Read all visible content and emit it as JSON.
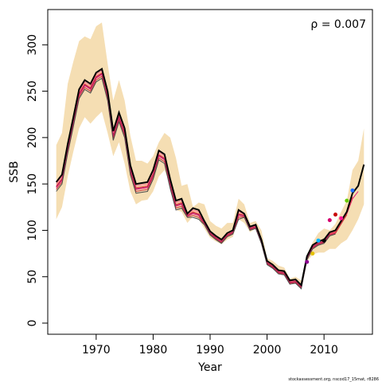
{
  "chart_data": {
    "type": "line",
    "xlabel": "Year",
    "ylabel": "SSB",
    "annotation": "ρ = 0.007",
    "footer": "stockassessment.org, nscod17_15mat, r8286",
    "xlim": [
      1961.5,
      2018.5
    ],
    "ylim": [
      -12,
      338
    ],
    "x_ticks": [
      1970,
      1980,
      1990,
      2000,
      2010
    ],
    "y_ticks": [
      0,
      50,
      100,
      150,
      200,
      250,
      300
    ],
    "colors": {
      "band": "#f5deb3",
      "main": "#000000",
      "retro": [
        "#e21b7a",
        "#f0503c",
        "#c8363c",
        "#ff6e8c",
        "#4a4a4a",
        "#b01e5a"
      ],
      "endpoints": [
        "#8b0090",
        "#e6c200",
        "#00b4ff",
        "#000000",
        "#d4006e",
        "#c80000",
        "#ff1493",
        "#66cc00",
        "#1e6eff"
      ]
    },
    "band": {
      "years": [
        1963,
        1964,
        1965,
        1966,
        1967,
        1968,
        1969,
        1970,
        1971,
        1972,
        1973,
        1974,
        1975,
        1976,
        1977,
        1978,
        1979,
        1980,
        1981,
        1982,
        1983,
        1984,
        1985,
        1986,
        1987,
        1988,
        1989,
        1990,
        1991,
        1992,
        1993,
        1994,
        1995,
        1996,
        1997,
        1998,
        1999,
        2000,
        2001,
        2002,
        2003,
        2004,
        2005,
        2006,
        2007,
        2008,
        2009,
        2010,
        2011,
        2012,
        2013,
        2014,
        2015,
        2016,
        2017
      ],
      "low": [
        112,
        125,
        158,
        185,
        210,
        222,
        215,
        222,
        228,
        205,
        180,
        195,
        172,
        142,
        128,
        132,
        133,
        142,
        158,
        165,
        150,
        122,
        120,
        108,
        115,
        112,
        102,
        92,
        88,
        85,
        90,
        93,
        112,
        108,
        98,
        102,
        85,
        64,
        60,
        55,
        53,
        43,
        43,
        37,
        66,
        74,
        76,
        76,
        80,
        80,
        86,
        90,
        100,
        112,
        128
      ],
      "high": [
        192,
        205,
        258,
        282,
        304,
        309,
        306,
        320,
        324,
        280,
        240,
        262,
        240,
        202,
        175,
        175,
        172,
        180,
        195,
        205,
        200,
        178,
        148,
        150,
        125,
        130,
        128,
        110,
        105,
        102,
        108,
        108,
        134,
        128,
        108,
        110,
        100,
        70,
        67,
        62,
        60,
        48,
        50,
        46,
        74,
        87,
        97,
        102,
        100,
        107,
        120,
        132,
        165,
        175,
        210
      ]
    },
    "series": [
      {
        "name": "",
        "x": [
          1963,
          1964,
          1965,
          1966,
          1967,
          1968,
          1969,
          1970,
          1971,
          1972,
          1973,
          1974,
          1975,
          1976,
          1977,
          1978,
          1979,
          1980,
          1981,
          1982,
          1983,
          1984,
          1985,
          1986,
          1987,
          1988,
          1989,
          1990,
          1991,
          1992,
          1993,
          1994,
          1995,
          1996,
          1997,
          1998,
          1999,
          2000,
          2001,
          2002,
          2003,
          2004,
          2005,
          2006,
          2007,
          2008,
          2009,
          2010,
          2011,
          2012,
          2013,
          2014,
          2015,
          2016,
          2017
        ],
        "values": [
          152,
          160,
          193,
          222,
          252,
          262,
          258,
          270,
          274,
          250,
          207,
          227,
          210,
          170,
          150,
          151,
          152,
          165,
          186,
          182,
          155,
          132,
          134,
          118,
          124,
          122,
          110,
          99,
          94,
          90,
          97,
          100,
          122,
          118,
          104,
          106,
          90,
          67,
          63,
          57,
          56,
          46,
          47,
          41,
          72,
          84,
          88,
          90,
          98,
          100,
          110,
          120,
          140,
          148,
          171
        ]
      }
    ],
    "endpoints": [
      {
        "year": 2007,
        "value": 66
      },
      {
        "year": 2008,
        "value": 75
      },
      {
        "year": 2009,
        "value": 89
      },
      {
        "year": 2010,
        "value": 89
      },
      {
        "year": 2011,
        "value": 111
      },
      {
        "year": 2012,
        "value": 117
      },
      {
        "year": 2013,
        "value": 113
      },
      {
        "year": 2014,
        "value": 132
      },
      {
        "year": 2015,
        "value": 143
      }
    ]
  }
}
